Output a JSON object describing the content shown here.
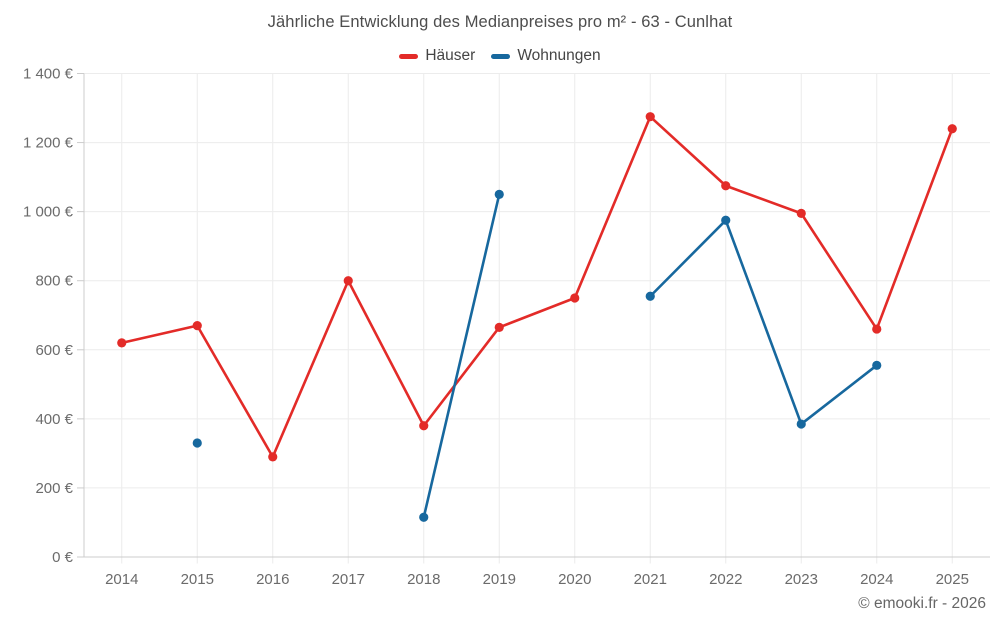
{
  "title": "Jährliche Entwicklung des Medianpreises pro m² - 63 - Cunlhat",
  "footer": "© emooki.fr - 2026",
  "colors": {
    "haeuser": "#e32b28",
    "wohnungen": "#17689e",
    "grid": "#ececec",
    "axis": "#cccccc",
    "title_text": "#4d4d4d",
    "tick_text": "#6b6b6b"
  },
  "chart_data": {
    "type": "line",
    "title": "Jährliche Entwicklung des Medianpreises pro m² - 63 - Cunlhat",
    "categories": [
      "2014",
      "2015",
      "2016",
      "2017",
      "2018",
      "2019",
      "2020",
      "2021",
      "2022",
      "2023",
      "2024",
      "2025"
    ],
    "series": [
      {
        "name": "Häuser",
        "color": "#e32b28",
        "values": [
          620,
          670,
          290,
          800,
          380,
          665,
          750,
          1275,
          1075,
          995,
          660,
          1240
        ]
      },
      {
        "name": "Wohnungen",
        "color": "#17689e",
        "values": [
          null,
          330,
          null,
          null,
          115,
          1050,
          null,
          755,
          975,
          385,
          555,
          null
        ]
      }
    ],
    "xlabel": "",
    "ylabel": "",
    "unit": "€",
    "ylim": [
      0,
      1400
    ],
    "yticks": [
      {
        "value": 0,
        "label": "0 €"
      },
      {
        "value": 200,
        "label": "200 €"
      },
      {
        "value": 400,
        "label": "400 €"
      },
      {
        "value": 600,
        "label": "600 €"
      },
      {
        "value": 800,
        "label": "800 €"
      },
      {
        "value": 1000,
        "label": "1 000 €"
      },
      {
        "value": 1200,
        "label": "1 200 €"
      },
      {
        "value": 1400,
        "label": "1 400 €"
      }
    ],
    "grid": true,
    "legend_position": "top"
  }
}
